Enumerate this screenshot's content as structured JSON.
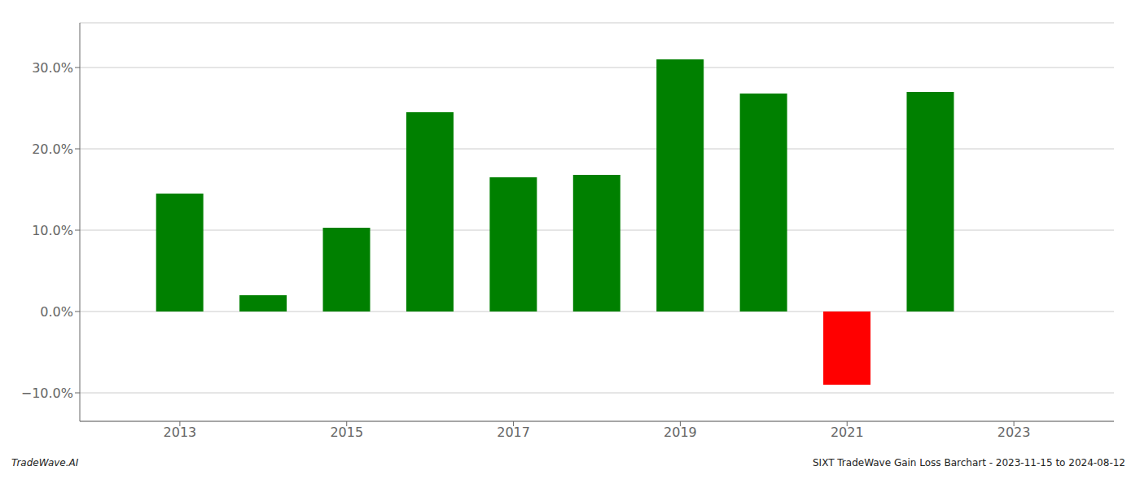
{
  "chart_data": {
    "type": "bar",
    "x": [
      2013,
      2014,
      2015,
      2016,
      2017,
      2018,
      2019,
      2020,
      2021,
      2022
    ],
    "values": [
      0.145,
      0.02,
      0.103,
      0.245,
      0.165,
      0.168,
      0.31,
      0.268,
      -0.09,
      0.27
    ],
    "colors": [
      "#008000",
      "#008000",
      "#008000",
      "#008000",
      "#008000",
      "#008000",
      "#008000",
      "#008000",
      "#ff0000",
      "#008000"
    ],
    "xlim": [
      2011.8,
      2024.2
    ],
    "xticks": [
      2013,
      2015,
      2017,
      2019,
      2021,
      2023
    ],
    "ylim": [
      -0.135,
      0.355
    ],
    "yticks": [
      {
        "value": -0.1,
        "label": "−10.0%"
      },
      {
        "value": 0.0,
        "label": "0.0%"
      },
      {
        "value": 0.1,
        "label": "10.0%"
      },
      {
        "value": 0.2,
        "label": "20.0%"
      },
      {
        "value": 0.3,
        "label": "30.0%"
      }
    ],
    "grid": true,
    "annotations": [
      "TradeWave.AI",
      "SIXT TradeWave Gain Loss Barchart - 2023-11-15 to 2024-08-12"
    ]
  }
}
